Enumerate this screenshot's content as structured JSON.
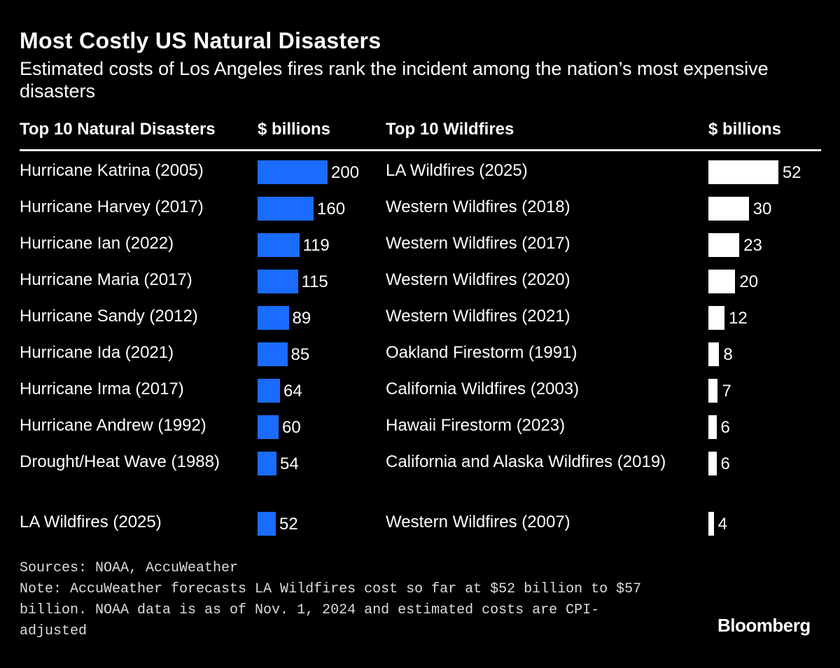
{
  "title": "Most Costly US Natural Disasters",
  "subtitle": "Estimated costs of Los Angeles fires rank the incident among the nation’s most expensive disasters",
  "chart_data": [
    {
      "type": "bar",
      "orientation": "horizontal",
      "column_header": "Top 10 Natural Disasters",
      "value_header": "$ billions",
      "color": "#1a6cff",
      "categories": [
        "Hurricane Katrina (2005)",
        "Hurricane Harvey (2017)",
        "Hurricane Ian (2022)",
        "Hurricane Maria (2017)",
        "Hurricane Sandy (2012)",
        "Hurricane Ida (2021)",
        "Hurricane Irma (2017)",
        "Hurricane Andrew (1992)",
        "Drought/Heat Wave (1988)",
        "LA Wildfires (2025)"
      ],
      "values": [
        200,
        160,
        119,
        115,
        89,
        85,
        64,
        60,
        54,
        52
      ]
    },
    {
      "type": "bar",
      "orientation": "horizontal",
      "column_header": "Top 10 Wildfires",
      "value_header": "$ billions",
      "color": "#ffffff",
      "categories": [
        "LA Wildfires (2025)",
        "Western Wildfires (2018)",
        "Western Wildfires (2017)",
        "Western Wildfires (2020)",
        "Western Wildfires (2021)",
        "Oakland Firestorm (1991)",
        "California Wildfires (2003)",
        "Hawaii Firestorm (2023)",
        "California and Alaska Wildfires (2019)",
        "Western Wildfires (2007)"
      ],
      "values": [
        52,
        30,
        23,
        20,
        12,
        8,
        7,
        6,
        6,
        4
      ]
    }
  ],
  "footer": {
    "sources": "Sources: NOAA, AccuWeather",
    "note": "Note: AccuWeather forecasts LA Wildfires cost so far at $52 billion to $57 billion. NOAA data is as of Nov. 1, 2024 and estimated costs are CPI-adjusted"
  },
  "logo": "Bloomberg"
}
